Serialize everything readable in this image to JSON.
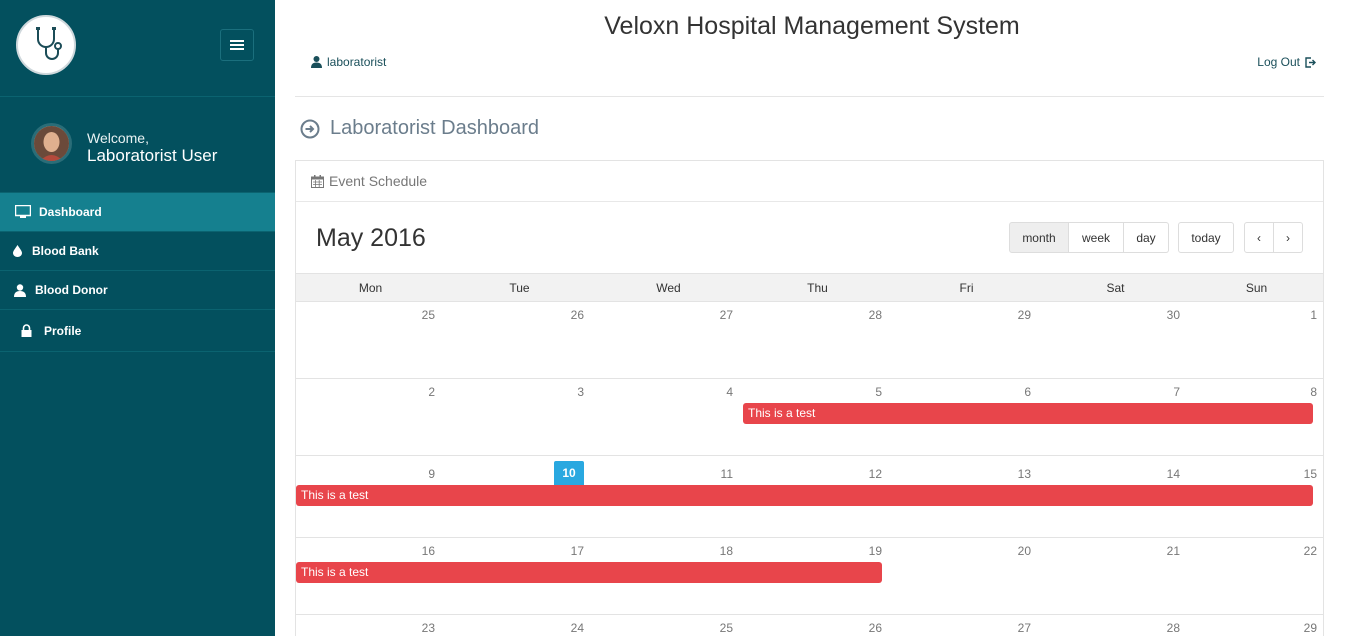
{
  "app": {
    "title": "Veloxn Hospital Management System"
  },
  "header": {
    "user_label": "laboratorist",
    "logout_label": "Log Out"
  },
  "sidebar": {
    "welcome": "Welcome,",
    "user_name": "Laboratorist User",
    "items": [
      {
        "label": "Dashboard",
        "icon": "monitor-icon",
        "active": true
      },
      {
        "label": "Blood Bank",
        "icon": "drop-icon",
        "active": false
      },
      {
        "label": "Blood Donor",
        "icon": "user-icon",
        "active": false
      },
      {
        "label": "Profile",
        "icon": "lock-icon",
        "active": false
      }
    ]
  },
  "page": {
    "title": "Laboratorist Dashboard"
  },
  "panel": {
    "heading": "Event Schedule"
  },
  "calendar": {
    "title": "May 2016",
    "views": [
      "month",
      "week",
      "day"
    ],
    "active_view": "month",
    "today_label": "today",
    "prev_label": "‹",
    "next_label": "›",
    "days_of_week": [
      "Mon",
      "Tue",
      "Wed",
      "Thu",
      "Fri",
      "Sat",
      "Sun"
    ],
    "weeks": [
      [
        "25",
        "26",
        "27",
        "28",
        "29",
        "30",
        "1"
      ],
      [
        "2",
        "3",
        "4",
        "5",
        "6",
        "7",
        "8"
      ],
      [
        "9",
        "10",
        "11",
        "12",
        "13",
        "14",
        "15"
      ],
      [
        "16",
        "17",
        "18",
        "19",
        "20",
        "21",
        "22"
      ],
      [
        "23",
        "24",
        "25",
        "26",
        "27",
        "28",
        "29"
      ]
    ],
    "today": "10",
    "events": [
      {
        "title": "This is a test",
        "start": "2016-05-05",
        "end": "2016-05-08"
      },
      {
        "title": "This is a test",
        "start": "2016-05-09",
        "end": "2016-05-15"
      },
      {
        "title": "This is a test",
        "start": "2016-05-16",
        "end": "2016-05-19"
      }
    ]
  },
  "colors": {
    "sidebar": "#03505e",
    "sidebar_active": "#15808f",
    "event": "#e8454b",
    "today": "#29a8e0"
  }
}
